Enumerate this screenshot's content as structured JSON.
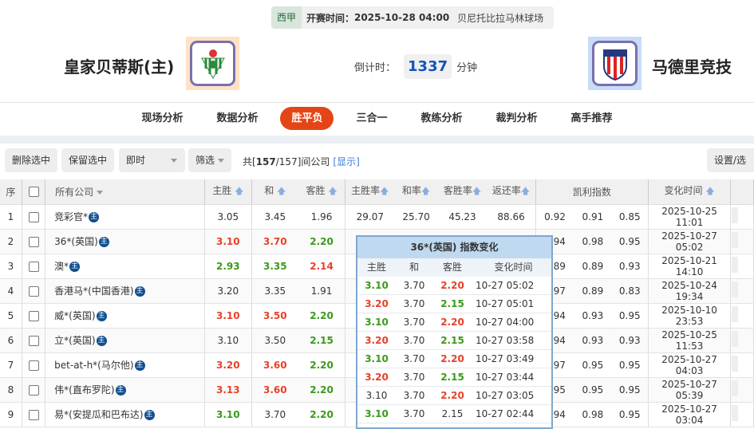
{
  "match": {
    "league": "西甲",
    "kickoff_label": "开赛时间：",
    "kickoff": "2025-10-28 04:00",
    "venue": "贝尼托比拉马林球场",
    "home": "皇家贝蒂斯(主)",
    "away": "马德里竞技",
    "countdown_label": "倒计时：",
    "countdown": "1337",
    "countdown_unit": "分钟"
  },
  "nav": [
    "现场分析",
    "数据分析",
    "胜平负",
    "三合一",
    "教练分析",
    "裁判分析",
    "高手推荐"
  ],
  "nav_active": 2,
  "toolbar": {
    "delete": "删除选中",
    "keep": "保留选中",
    "mode": "即时",
    "filter": "筛选",
    "count_pre": "共[",
    "count_a": "157",
    "count_b": "/157]间公司",
    "show": "[显示]",
    "settings": "设置/选择"
  },
  "table": {
    "headers": {
      "no": "序",
      "company": "所有公司",
      "h": "主胜",
      "d": "和",
      "a": "客胜",
      "hr": "主胜率",
      "dr": "和率",
      "ar": "客胜率",
      "ret": "返还率",
      "kelly": "凯利指数",
      "time": "变化时间"
    },
    "badge": "主",
    "rows": [
      {
        "no": "1",
        "name": "竞彩官*",
        "o": [
          [
            "3.05",
            ""
          ],
          [
            "3.45",
            ""
          ],
          [
            "1.96",
            ""
          ]
        ],
        "r": [
          "29.07",
          "25.70",
          "45.23",
          "88.66"
        ],
        "k": [
          "0.92",
          "0.91",
          "0.85"
        ],
        "t": "2025-10-25 11:01"
      },
      {
        "no": "2",
        "name": "36*(英国)",
        "o": [
          [
            "3.10",
            "red"
          ],
          [
            "3.70",
            "red"
          ],
          [
            "2.20",
            "green"
          ]
        ],
        "r": [],
        "k": [
          "0.94",
          "0.98",
          "0.95"
        ],
        "t": "2025-10-27 05:02"
      },
      {
        "no": "3",
        "name": "澳*",
        "o": [
          [
            "2.93",
            "green"
          ],
          [
            "3.35",
            "green"
          ],
          [
            "2.14",
            "red"
          ]
        ],
        "r": [],
        "k": [
          "0.89",
          "0.89",
          "0.93"
        ],
        "t": "2025-10-21 14:10"
      },
      {
        "no": "4",
        "name": "香港马*(中国香港)",
        "o": [
          [
            "3.20",
            ""
          ],
          [
            "3.35",
            ""
          ],
          [
            "1.91",
            ""
          ]
        ],
        "r": [],
        "k": [
          "0.97",
          "0.89",
          "0.83"
        ],
        "t": "2025-10-24 19:34"
      },
      {
        "no": "5",
        "name": "威*(英国)",
        "o": [
          [
            "3.10",
            "red"
          ],
          [
            "3.50",
            "red"
          ],
          [
            "2.20",
            "green"
          ]
        ],
        "r": [],
        "k": [
          "0.94",
          "0.93",
          "0.95"
        ],
        "t": "2025-10-10 23:53"
      },
      {
        "no": "6",
        "name": "立*(英国)",
        "o": [
          [
            "3.10",
            ""
          ],
          [
            "3.50",
            ""
          ],
          [
            "2.15",
            "green"
          ]
        ],
        "r": [],
        "k": [
          "0.94",
          "0.93",
          "0.93"
        ],
        "t": "2025-10-25 11:53"
      },
      {
        "no": "7",
        "name": "bet-at-h*(马尔他)",
        "o": [
          [
            "3.20",
            "red"
          ],
          [
            "3.60",
            "red"
          ],
          [
            "2.20",
            "green"
          ]
        ],
        "r": [],
        "k": [
          "0.97",
          "0.95",
          "0.95"
        ],
        "t": "2025-10-27 04:03"
      },
      {
        "no": "8",
        "name": "伟*(直布罗陀)",
        "o": [
          [
            "3.13",
            "red"
          ],
          [
            "3.60",
            "red"
          ],
          [
            "2.20",
            "green"
          ]
        ],
        "r": [],
        "k": [
          "0.95",
          "0.95",
          "0.95"
        ],
        "t": "2025-10-27 05:39"
      },
      {
        "no": "9",
        "name": "易*(安提瓜和巴布达)",
        "o": [
          [
            "3.10",
            "green"
          ],
          [
            "3.70",
            ""
          ],
          [
            "2.20",
            "green"
          ]
        ],
        "r": [],
        "k": [
          "0.94",
          "0.98",
          "0.95"
        ],
        "t": "2025-10-27 03:04"
      }
    ]
  },
  "popup": {
    "title": "36*(英国) 指数变化",
    "headers": [
      "主胜",
      "和",
      "客胜",
      "变化时间"
    ],
    "rows": [
      [
        [
          "3.10",
          "green"
        ],
        [
          "3.70",
          ""
        ],
        [
          "2.20",
          "red"
        ],
        "10-27 05:02"
      ],
      [
        [
          "3.20",
          "red"
        ],
        [
          "3.70",
          ""
        ],
        [
          "2.15",
          "green"
        ],
        "10-27 05:01"
      ],
      [
        [
          "3.10",
          "green"
        ],
        [
          "3.70",
          ""
        ],
        [
          "2.20",
          "red"
        ],
        "10-27 04:00"
      ],
      [
        [
          "3.20",
          "red"
        ],
        [
          "3.70",
          ""
        ],
        [
          "2.15",
          "green"
        ],
        "10-27 03:58"
      ],
      [
        [
          "3.10",
          "green"
        ],
        [
          "3.70",
          ""
        ],
        [
          "2.20",
          "red"
        ],
        "10-27 03:49"
      ],
      [
        [
          "3.20",
          "red"
        ],
        [
          "3.70",
          ""
        ],
        [
          "2.15",
          "green"
        ],
        "10-27 03:44"
      ],
      [
        [
          "3.10",
          ""
        ],
        [
          "3.70",
          ""
        ],
        [
          "2.20",
          "red"
        ],
        "10-27 03:05"
      ],
      [
        [
          "3.10",
          "green"
        ],
        [
          "3.70",
          ""
        ],
        [
          "2.15",
          ""
        ],
        "10-27 02:44"
      ]
    ]
  },
  "colors": {
    "red": "#e8412a",
    "green": "#3b9a1a",
    "accent": "#e54516",
    "countdown": "#1453b8"
  }
}
